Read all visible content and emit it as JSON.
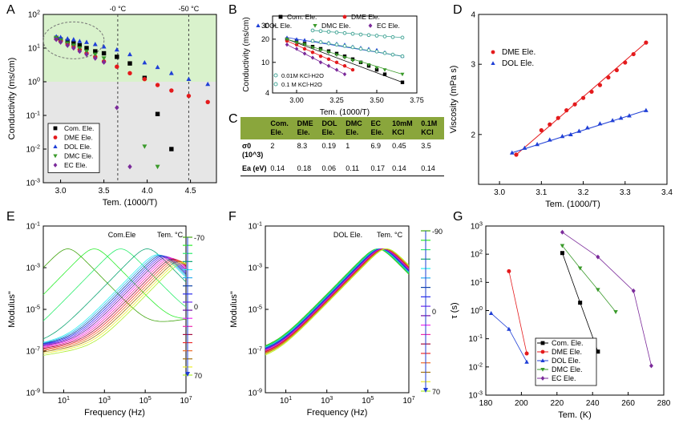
{
  "panel_labels": {
    "A": "A",
    "B": "B",
    "C": "C",
    "D": "D",
    "E": "E",
    "F": "F",
    "G": "G"
  },
  "colors": {
    "com": "#000000",
    "dme": "#e41a1c",
    "dol": "#1f3fd6",
    "dmc": "#3a9a2a",
    "ec": "#7b2a9a",
    "kcl": "#4aa89a"
  },
  "chart_data": [
    {
      "panel": "A",
      "type": "scatter",
      "xlabel": "Tem. (1000/T)",
      "ylabel": "Conductivity (ms/cm)",
      "xlim": [
        2.8,
        4.8
      ],
      "ylim": [
        0.001,
        100
      ],
      "yscale": "log",
      "xticks": [
        "3.0",
        "3.5",
        "4.0",
        "4.5"
      ],
      "yticks": [
        "10^-3",
        "10^-2",
        "10^-1",
        "10^0",
        "10^1",
        "10^2"
      ],
      "annotations": [
        "-0 °C",
        "-50 °C"
      ],
      "vlines": [
        3.66,
        4.48
      ],
      "shaded": {
        "green_above": 1.0
      },
      "legend_position": "bottom-left",
      "series": [
        {
          "name": "Com. Ele.",
          "marker": "square",
          "x": [
            2.95,
            3.0,
            3.08,
            3.15,
            3.22,
            3.3,
            3.4,
            3.5,
            3.65,
            3.8,
            3.97,
            4.12,
            4.28
          ],
          "y": [
            20,
            18,
            16,
            14,
            12,
            10,
            8,
            7,
            5.5,
            3.5,
            1.3,
            0.11,
            0.01
          ]
        },
        {
          "name": "DME Ele.",
          "marker": "circle",
          "x": [
            2.95,
            3.0,
            3.08,
            3.15,
            3.22,
            3.3,
            3.4,
            3.5,
            3.65,
            3.8,
            3.97,
            4.12,
            4.28,
            4.48,
            4.7
          ],
          "y": [
            19,
            16,
            13,
            11,
            9,
            7,
            5.5,
            4,
            2.8,
            1.8,
            1.2,
            0.8,
            0.55,
            0.38,
            0.25
          ]
        },
        {
          "name": "DOL Ele.",
          "marker": "triangle-up",
          "x": [
            2.95,
            3.0,
            3.08,
            3.15,
            3.22,
            3.3,
            3.4,
            3.5,
            3.65,
            3.8,
            3.97,
            4.12,
            4.28,
            4.48,
            4.7
          ],
          "y": [
            22,
            21,
            19,
            18,
            16,
            15,
            13,
            11,
            9,
            6.5,
            3.7,
            2.7,
            1.8,
            1.2,
            0.85
          ]
        },
        {
          "name": "DMC Ele.",
          "marker": "triangle-down",
          "x": [
            2.95,
            3.0,
            3.08,
            3.15,
            3.22,
            3.3,
            3.4,
            3.5,
            3.97,
            4.12
          ],
          "y": [
            20,
            17,
            14,
            12,
            10,
            8,
            6.5,
            5,
            0.012,
            0.003
          ]
        },
        {
          "name": "EC Ele.",
          "marker": "diamond",
          "x": [
            2.95,
            3.0,
            3.08,
            3.15,
            3.22,
            3.3,
            3.4,
            3.5,
            3.65,
            3.8
          ],
          "y": [
            18,
            15,
            12,
            10,
            8,
            6.5,
            5,
            3.8,
            0.17,
            0.003
          ]
        }
      ]
    },
    {
      "panel": "B",
      "type": "scatter",
      "xlabel": "Tem. (1000/T)",
      "ylabel": "Conductivity (ms/cm)",
      "xlim": [
        2.85,
        3.75
      ],
      "ylim": [
        4,
        40
      ],
      "yscale": "log",
      "xticks": [
        "3.00",
        "3.25",
        "3.50",
        "3.75"
      ],
      "yticks": [
        "4",
        "10",
        "20",
        "30"
      ],
      "legend_position": "top",
      "series": [
        {
          "name": "Com. Ele.",
          "marker": "square",
          "x": [
            2.94,
            3.0,
            3.05,
            3.1,
            3.15,
            3.2,
            3.25,
            3.3,
            3.35,
            3.4,
            3.45,
            3.5,
            3.55,
            3.66
          ],
          "y": [
            20,
            19,
            17.5,
            16,
            15,
            14,
            13,
            12,
            11,
            10,
            9,
            8,
            7,
            5.5
          ]
        },
        {
          "name": "DME Ele.",
          "marker": "circle",
          "x": [
            2.94,
            3.0,
            3.05,
            3.1,
            3.15,
            3.2,
            3.25,
            3.3,
            3.35
          ],
          "y": [
            19,
            17,
            15,
            13.5,
            12,
            11,
            10,
            9,
            8
          ]
        },
        {
          "name": "DOL Ele.",
          "marker": "triangle-up",
          "x": [
            2.94,
            3.0,
            3.05,
            3.1,
            3.15,
            3.2,
            3.25,
            3.3,
            3.35,
            3.4,
            3.45,
            3.5,
            3.55,
            3.66
          ],
          "y": [
            21,
            20,
            19.5,
            19,
            18.5,
            18,
            17.5,
            17,
            16,
            15.5,
            15,
            14.5,
            13.5,
            12
          ]
        },
        {
          "name": "DMC Ele.",
          "marker": "triangle-down",
          "x": [
            2.94,
            3.0,
            3.05,
            3.1,
            3.15,
            3.2,
            3.25,
            3.3,
            3.35,
            3.4,
            3.45,
            3.5,
            3.55,
            3.66
          ],
          "y": [
            20,
            18,
            17,
            15.5,
            14.5,
            13.5,
            12.5,
            11.5,
            10.5,
            10,
            9.3,
            8.5,
            8,
            7
          ]
        },
        {
          "name": "EC Ele.",
          "marker": "diamond",
          "x": [
            2.94,
            3.0,
            3.05,
            3.1,
            3.15,
            3.2,
            3.25,
            3.3
          ],
          "y": [
            17,
            15,
            13,
            11.5,
            10,
            9,
            8,
            7
          ]
        },
        {
          "name": "0.01M KCl-H2O",
          "marker": "circle-open",
          "x": [
            3.1,
            3.15,
            3.2,
            3.25,
            3.3,
            3.35,
            3.4,
            3.45,
            3.5,
            3.55,
            3.6,
            3.66
          ],
          "y": [
            19,
            18.3,
            17.6,
            17,
            16.3,
            15.7,
            15,
            14.4,
            13.8,
            13.2,
            12.6,
            12
          ]
        },
        {
          "name": "0.1 M KCl-H2O",
          "marker": "circle-open",
          "x": [
            3.1,
            3.15,
            3.2,
            3.25,
            3.3,
            3.35,
            3.4,
            3.45,
            3.5,
            3.55,
            3.6,
            3.66
          ],
          "y": [
            26,
            25.5,
            25,
            24.5,
            24,
            23.5,
            23,
            22.6,
            22.2,
            21.7,
            21.3,
            21
          ]
        }
      ]
    },
    {
      "panel": "C",
      "type": "table",
      "columns": [
        "",
        "Com. Ele.",
        "DME Ele.",
        "DOL Ele.",
        "DMC Ele.",
        "EC Ele.",
        "10mM KCl",
        "0.1M KCl"
      ],
      "rows": [
        {
          "label": "σ0 (10^3)",
          "values": [
            "2",
            "8.3",
            "0.19",
            "1",
            "6.9",
            "0.45",
            "3.5"
          ]
        },
        {
          "label": "Ea (eV)",
          "values": [
            "0.14",
            "0.18",
            "0.06",
            "0.11",
            "0.17",
            "0.14",
            "0.14"
          ]
        }
      ]
    },
    {
      "panel": "D",
      "type": "scatter",
      "xlabel": "Tem. (1000/T)",
      "ylabel": "Viscosity (mPa s)",
      "xlim": [
        2.95,
        3.4
      ],
      "ylim": [
        1.5,
        4
      ],
      "yscale": "log",
      "xticks": [
        "3.0",
        "3.1",
        "3.2",
        "3.3",
        "3.4"
      ],
      "yticks": [
        "2",
        "3",
        "4"
      ],
      "legend_position": "top-left",
      "series": [
        {
          "name": "DME Ele.",
          "marker": "circle",
          "x": [
            3.04,
            3.1,
            3.12,
            3.14,
            3.16,
            3.18,
            3.2,
            3.22,
            3.24,
            3.26,
            3.28,
            3.3,
            3.32,
            3.35
          ],
          "y": [
            1.78,
            2.05,
            2.12,
            2.2,
            2.3,
            2.38,
            2.47,
            2.56,
            2.66,
            2.78,
            2.9,
            3.03,
            3.18,
            3.4
          ]
        },
        {
          "name": "DOL Ele.",
          "marker": "triangle-up",
          "x": [
            3.03,
            3.06,
            3.09,
            3.12,
            3.15,
            3.17,
            3.19,
            3.21,
            3.24,
            3.27,
            3.29,
            3.31,
            3.35
          ],
          "y": [
            1.8,
            1.85,
            1.89,
            1.94,
            1.98,
            2.0,
            2.04,
            2.08,
            2.13,
            2.17,
            2.2,
            2.23,
            2.3
          ]
        }
      ]
    },
    {
      "panel": "E",
      "type": "line",
      "xlabel": "Frequency (Hz)",
      "ylabel": "Modulus\"",
      "xscale": "log",
      "yscale": "log",
      "xlim": [
        1,
        10000000
      ],
      "ylim": [
        1e-09,
        0.1
      ],
      "xticks": [
        "10^1",
        "10^3",
        "10^5",
        "10^7"
      ],
      "yticks": [
        "10^-9",
        "10^-7",
        "10^-5",
        "10^-3",
        "10^-1"
      ],
      "annotation": "Com.Ele",
      "temperature_scale": {
        "title": "Tem. °C",
        "labels": [
          "-70",
          "0",
          "70"
        ]
      }
    },
    {
      "panel": "F",
      "type": "line",
      "xlabel": "Frequency (Hz)",
      "ylabel": "Modulus\"",
      "xscale": "log",
      "yscale": "log",
      "xlim": [
        1,
        10000000
      ],
      "ylim": [
        1e-09,
        0.1
      ],
      "xticks": [
        "10^1",
        "10^3",
        "10^5",
        "10^7"
      ],
      "yticks": [
        "10^-9",
        "10^-7",
        "10^-5",
        "10^-3",
        "10^-1"
      ],
      "annotation": "DOL Ele.",
      "temperature_scale": {
        "title": "Tem. °C",
        "labels": [
          "-90",
          "0",
          "70"
        ]
      }
    },
    {
      "panel": "G",
      "type": "line",
      "xlabel": "Tem. (K)",
      "ylabel": "τ (s)",
      "xlim": [
        180,
        280
      ],
      "ylim": [
        0.001,
        1000
      ],
      "yscale": "log",
      "xticks": [
        "180",
        "200",
        "220",
        "240",
        "260",
        "280"
      ],
      "yticks": [
        "10^-3",
        "10^-2",
        "10^-1",
        "10^0",
        "10^1",
        "10^2",
        "10^3"
      ],
      "legend_position": "bottom-left",
      "series": [
        {
          "name": "Com. Ele.",
          "marker": "square",
          "x": [
            223,
            233,
            243
          ],
          "y": [
            110,
            1.9,
            0.035
          ]
        },
        {
          "name": "DME Ele.",
          "marker": "circle",
          "x": [
            193,
            203
          ],
          "y": [
            25,
            0.03
          ]
        },
        {
          "name": "DOL Ele.",
          "marker": "triangle-up",
          "x": [
            183,
            193,
            203
          ],
          "y": [
            0.8,
            0.22,
            0.015
          ]
        },
        {
          "name": "DMC Ele.",
          "marker": "triangle-down",
          "x": [
            223,
            233,
            243,
            253
          ],
          "y": [
            200,
            32,
            5.5,
            0.9
          ]
        },
        {
          "name": "EC Ele.",
          "marker": "diamond",
          "x": [
            223,
            243,
            263,
            273
          ],
          "y": [
            600,
            80,
            5,
            0.011
          ]
        }
      ]
    }
  ]
}
